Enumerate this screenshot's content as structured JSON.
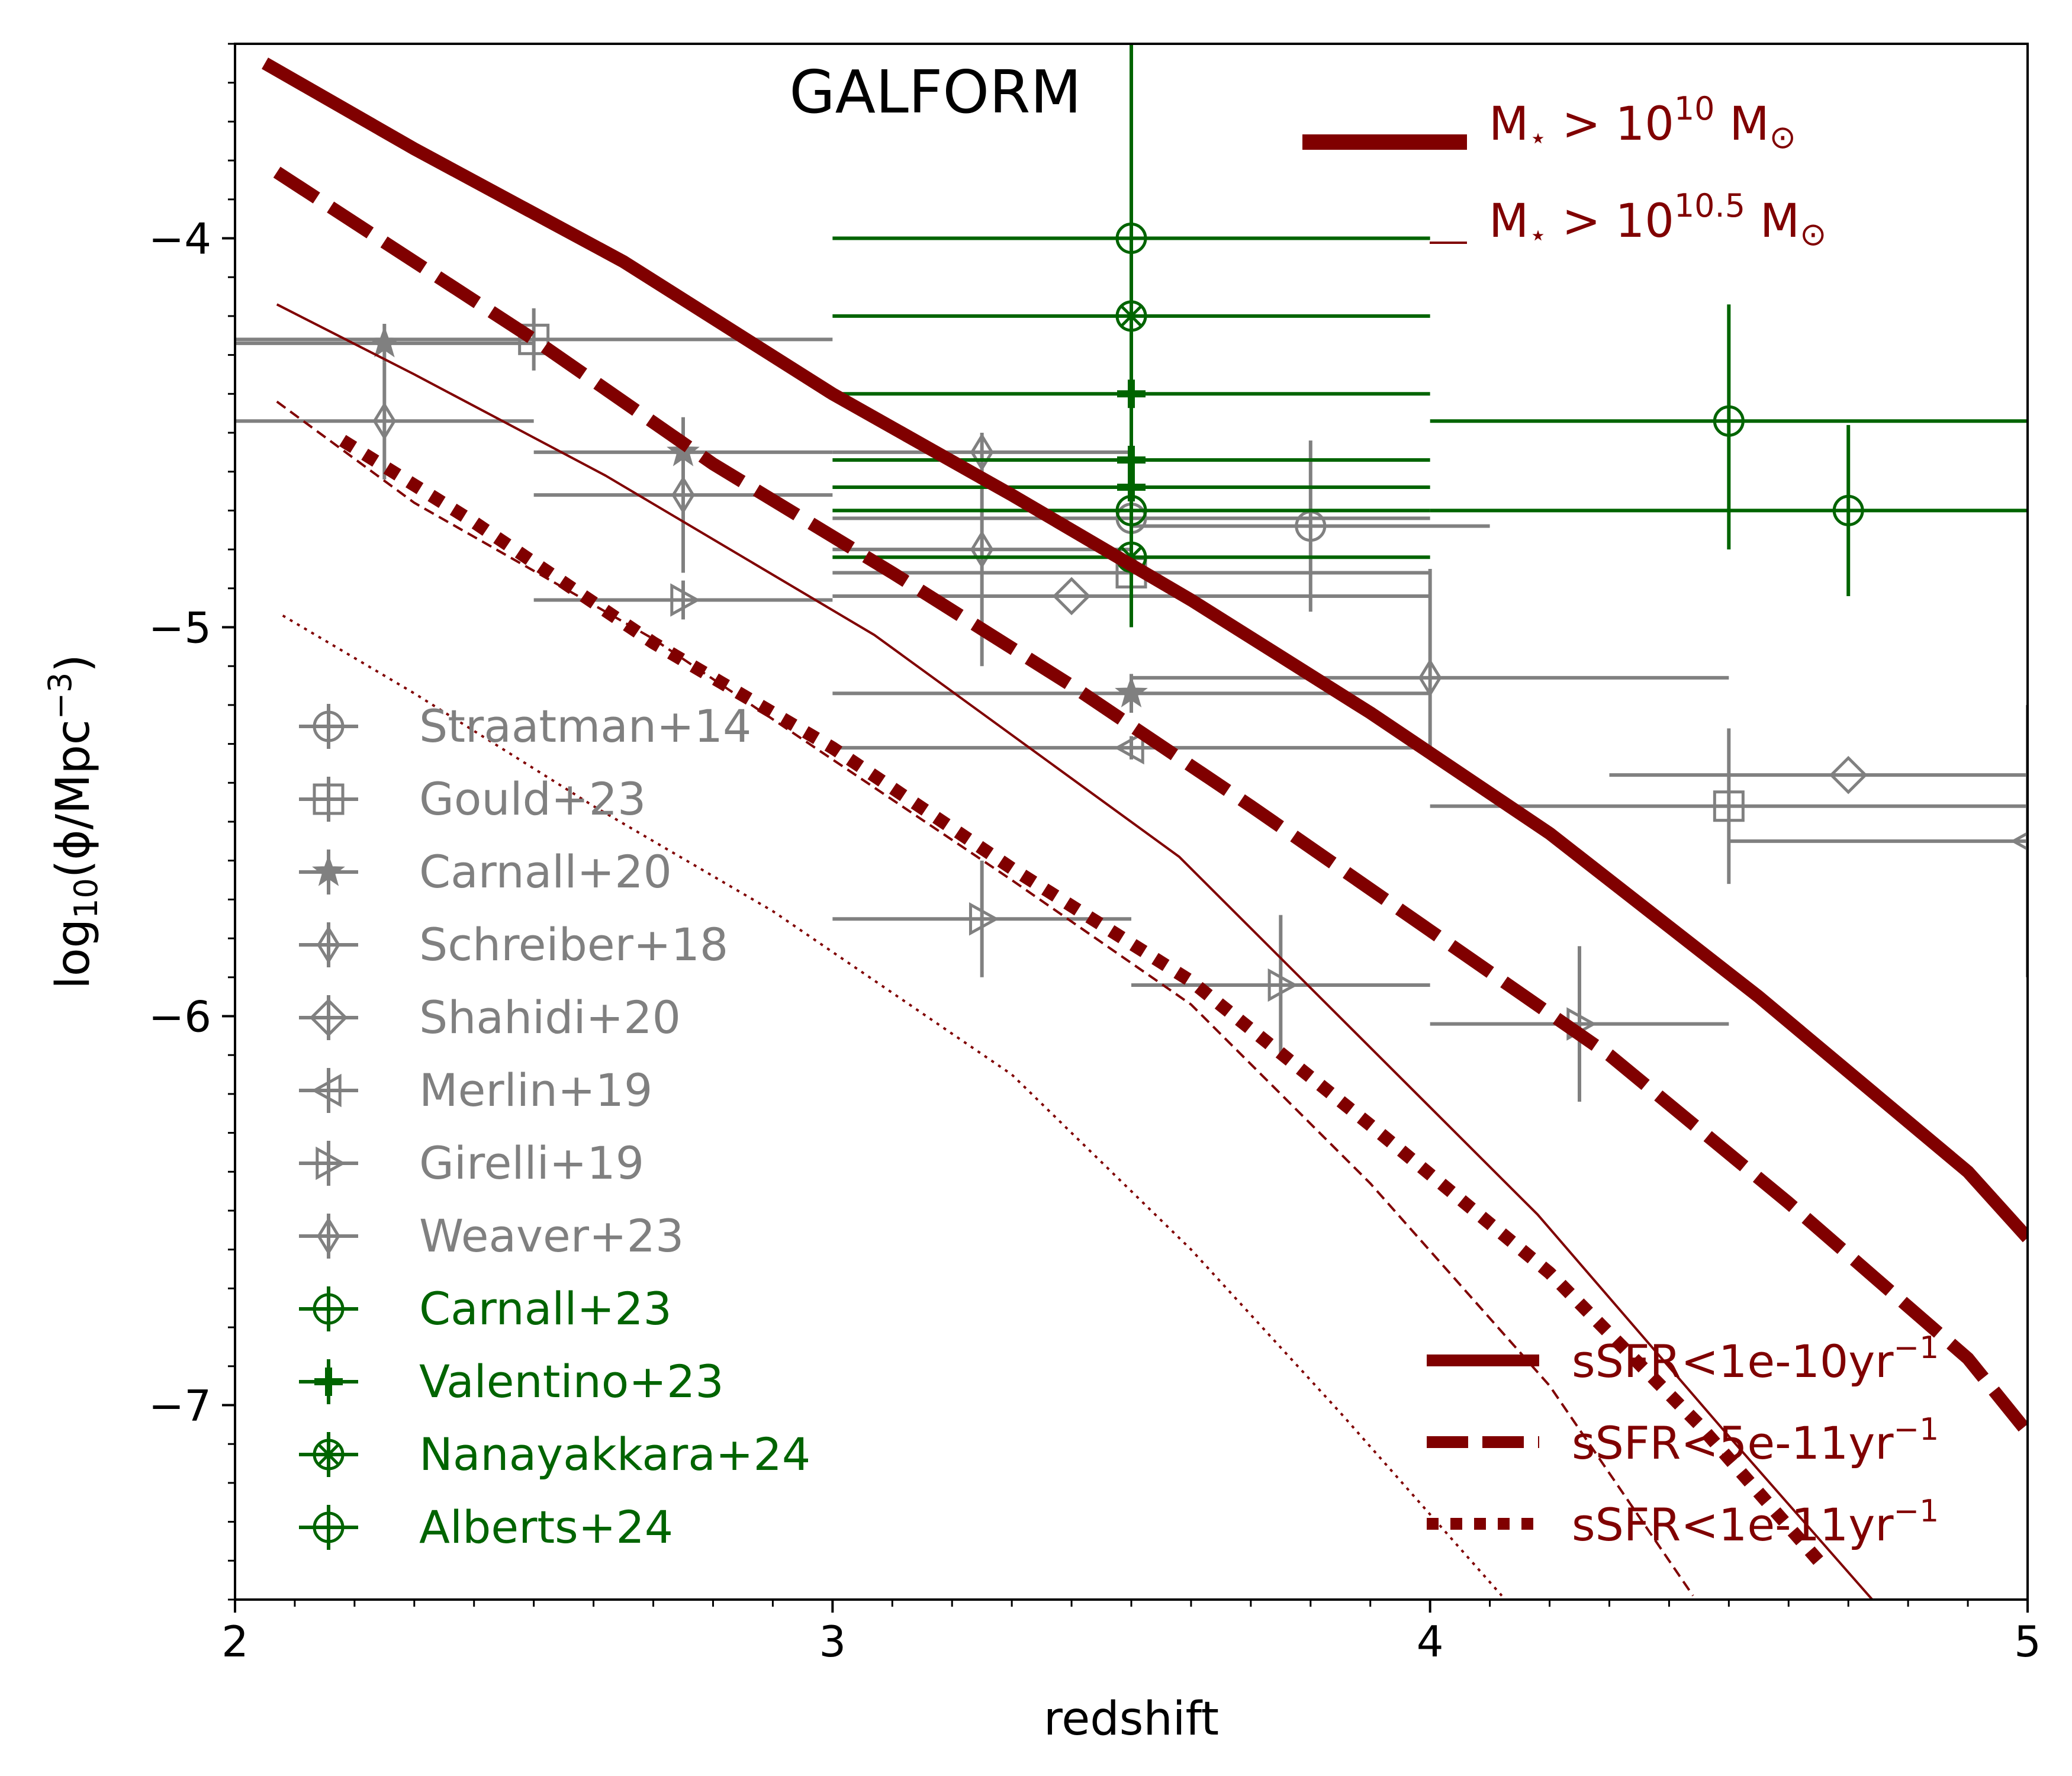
{
  "chart_data": {
    "type": "line",
    "title": "GALFORM",
    "xlabel": "redshift",
    "ylabel_parts": [
      "log",
      "10",
      "(ϕ/Mpc",
      "−3",
      ")"
    ],
    "xlim": [
      2,
      5
    ],
    "ylim": [
      -7.5,
      -3.5
    ],
    "xticks": [
      2,
      3,
      4,
      5
    ],
    "xtick_labels": [
      "2",
      "3",
      "4",
      "5"
    ],
    "yticks": [
      -4,
      -5,
      -6,
      -7
    ],
    "ytick_labels": [
      "−4",
      "−5",
      "−6",
      "−7"
    ],
    "mass_legend": [
      {
        "prefix": "M",
        "sub": "⋆",
        "mid": " > 10",
        "sup": "10",
        "suffix": " M",
        "suffix_sub": "⊙",
        "width": "thick"
      },
      {
        "prefix": "M",
        "sub": "⋆",
        "mid": " > 10",
        "sup": "10.5",
        "suffix": " M",
        "suffix_sub": "⊙",
        "width": "thin"
      }
    ],
    "ssfr_legend": [
      {
        "base": "sSFR<1e-10yr",
        "sup": "−1",
        "style": "solid"
      },
      {
        "base": "sSFR<5e-11yr",
        "sup": "−1",
        "style": "dashed"
      },
      {
        "base": "sSFR<1e-11yr",
        "sup": "−1",
        "style": "dotted"
      }
    ],
    "model_series": [
      {
        "mass": "1e10",
        "cut": "1e-10",
        "style": "solid",
        "width": "thick",
        "x": [
          2.05,
          2.3,
          2.65,
          3.0,
          3.3,
          3.6,
          3.9,
          4.2,
          4.55,
          4.9,
          5.0
        ],
        "y": [
          -3.55,
          -3.77,
          -4.06,
          -4.4,
          -4.66,
          -4.93,
          -5.22,
          -5.53,
          -5.95,
          -6.4,
          -6.57
        ]
      },
      {
        "mass": "1e10",
        "cut": "5e-11",
        "style": "dashed",
        "width": "thick",
        "x": [
          2.07,
          2.25,
          2.5,
          2.8,
          3.1,
          3.4,
          3.7,
          4.0,
          4.3,
          4.6,
          4.9,
          5.0
        ],
        "y": [
          -3.83,
          -4.01,
          -4.26,
          -4.58,
          -4.86,
          -5.15,
          -5.46,
          -5.78,
          -6.1,
          -6.48,
          -6.88,
          -7.07
        ]
      },
      {
        "mass": "1e10",
        "cut": "1e-11",
        "style": "dotted",
        "width": "thick",
        "x": [
          2.18,
          2.4,
          2.7,
          3.0,
          3.3,
          3.6,
          3.9,
          4.2,
          4.45,
          4.65
        ],
        "y": [
          -4.52,
          -4.73,
          -5.04,
          -5.31,
          -5.62,
          -5.91,
          -6.28,
          -6.66,
          -7.05,
          -7.4
        ]
      },
      {
        "mass": "3e10",
        "cut": "1e-10",
        "style": "solid",
        "width": "thin",
        "x": [
          2.07,
          2.3,
          2.62,
          3.07,
          3.58,
          4.18,
          4.5,
          4.74
        ],
        "y": [
          -4.17,
          -4.35,
          -4.61,
          -5.02,
          -5.59,
          -6.51,
          -7.08,
          -7.5
        ]
      },
      {
        "mass": "3e10",
        "cut": "5e-11",
        "style": "dashed",
        "width": "thin",
        "x": [
          2.07,
          2.3,
          2.7,
          3.0,
          3.3,
          3.6,
          3.9,
          4.2,
          4.44
        ],
        "y": [
          -4.42,
          -4.68,
          -5.03,
          -5.34,
          -5.65,
          -5.97,
          -6.43,
          -6.95,
          -7.49
        ]
      },
      {
        "mass": "3e10",
        "cut": "1e-11",
        "style": "dotted",
        "width": "thin",
        "x": [
          2.08,
          2.3,
          2.6,
          2.9,
          3.3,
          3.6,
          3.85,
          4.12
        ],
        "y": [
          -4.97,
          -5.17,
          -5.46,
          -5.73,
          -6.15,
          -6.6,
          -7.02,
          -7.49
        ]
      }
    ],
    "observations": [
      {
        "name": "Straatman+14",
        "group": "literature",
        "marker": "circle",
        "points": [
          {
            "x": 3.5,
            "y": -4.72,
            "xerr": [
              0.5,
              0.5
            ],
            "yerr": [
              0.12,
              0.12
            ]
          },
          {
            "x": 3.8,
            "y": -4.74,
            "xerr": [
              0.3,
              0.3
            ],
            "yerr": [
              0.22,
              0.22
            ]
          }
        ]
      },
      {
        "name": "Gould+23",
        "group": "literature",
        "marker": "square",
        "points": [
          {
            "x": 2.5,
            "y": -4.26,
            "xerr": [
              0.5,
              0.5
            ],
            "yerr": [
              0.08,
              0.08
            ]
          },
          {
            "x": 3.5,
            "y": -4.86,
            "xerr": [
              0.5,
              0.5
            ],
            "yerr": [
              0.1,
              0.1
            ]
          },
          {
            "x": 4.5,
            "y": -5.46,
            "xerr": [
              0.5,
              0.5
            ],
            "yerr": [
              0.2,
              0.2
            ]
          }
        ]
      },
      {
        "name": "Carnall+20",
        "group": "literature",
        "marker": "star",
        "points": [
          {
            "x": 2.25,
            "y": -4.27,
            "xerr": [
              0.25,
              0.25
            ],
            "yerr": [
              0.05,
              0.05
            ]
          },
          {
            "x": 2.75,
            "y": -4.55,
            "xerr": [
              0.25,
              0.25
            ],
            "yerr": [
              0.08,
              0.08
            ]
          },
          {
            "x": 3.5,
            "y": -5.17,
            "xerr": [
              0.5,
              0.5
            ],
            "yerr": [
              0.05,
              0.05
            ]
          }
        ]
      },
      {
        "name": "Schreiber+18",
        "group": "literature",
        "marker": "thin_diamond",
        "points": [
          {
            "x": 2.25,
            "y": -4.47,
            "xerr": [
              0.25,
              0.25
            ],
            "yerr": [
              0.15,
              0.15
            ]
          },
          {
            "x": 3.25,
            "y": -4.8,
            "xerr": [
              0.25,
              0.25
            ],
            "yerr": [
              0.3,
              0.3
            ]
          }
        ]
      },
      {
        "name": "Shahidi+20",
        "group": "literature",
        "marker": "diamond",
        "points": [
          {
            "x": 3.4,
            "y": -4.92,
            "xerr": [
              0.4,
              0.6
            ],
            "yerr": [
              0.0,
              0.0
            ]
          },
          {
            "x": 4.7,
            "y": -5.38,
            "xerr": [
              0.4,
              0.3
            ],
            "yerr": [
              0.0,
              0.0
            ]
          }
        ]
      },
      {
        "name": "Merlin+19",
        "group": "literature",
        "marker": "triangle_left",
        "points": [
          {
            "x": 3.5,
            "y": -5.31,
            "xerr": [
              0.5,
              0.5
            ],
            "yerr": [
              0.03,
              0.03
            ]
          },
          {
            "x": 5.0,
            "y": -5.55,
            "xerr": [
              0.5,
              0.5
            ],
            "yerr": [
              0.35,
              0.35
            ]
          }
        ]
      },
      {
        "name": "Girelli+19",
        "group": "literature",
        "marker": "triangle_right",
        "points": [
          {
            "x": 2.75,
            "y": -4.93,
            "xerr": [
              0.25,
              0.25
            ],
            "yerr": [
              0.05,
              0.05
            ]
          },
          {
            "x": 3.25,
            "y": -5.75,
            "xerr": [
              0.25,
              0.25
            ],
            "yerr": [
              0.15,
              0.15
            ]
          },
          {
            "x": 3.75,
            "y": -5.92,
            "xerr": [
              0.25,
              0.25
            ],
            "yerr": [
              0.18,
              0.18
            ]
          },
          {
            "x": 4.25,
            "y": -6.02,
            "xerr": [
              0.25,
              0.25
            ],
            "yerr": [
              0.2,
              0.2
            ]
          }
        ]
      },
      {
        "name": "Weaver+23",
        "group": "literature",
        "marker": "thin_diamond",
        "points": [
          {
            "x": 2.75,
            "y": -4.66,
            "xerr": [
              0.25,
              0.25
            ],
            "yerr": [
              0.2,
              0.2
            ]
          },
          {
            "x": 3.25,
            "y": -4.55,
            "xerr": [
              0.25,
              0.25
            ],
            "yerr": [
              0.0,
              0.0
            ]
          },
          {
            "x": 4.0,
            "y": -5.13,
            "xerr": [
              0.5,
              0.5
            ],
            "yerr": [
              0.18,
              0.28
            ]
          }
        ]
      },
      {
        "name": "Carnall+23",
        "group": "jwst",
        "marker": "circle",
        "points": [
          {
            "x": 3.5,
            "y": -4.0,
            "xerr": [
              0.5,
              0.5
            ],
            "yerr": [
              1.0,
              0.5
            ]
          },
          {
            "x": 4.5,
            "y": -4.47,
            "xerr": [
              0.5,
              0.5
            ],
            "yerr": [
              0.33,
              0.3
            ]
          }
        ]
      },
      {
        "name": "Valentino+23",
        "group": "jwst",
        "marker": "plus",
        "points": [
          {
            "x": 3.5,
            "y": -4.4,
            "xerr": [
              0.5,
              0.5
            ],
            "yerr": [
              0.05,
              0.05
            ]
          },
          {
            "x": 3.5,
            "y": -4.57,
            "xerr": [
              0.5,
              0.5
            ],
            "yerr": [
              0.05,
              0.05
            ]
          },
          {
            "x": 3.5,
            "y": -4.64,
            "xerr": [
              0.5,
              0.5
            ],
            "yerr": [
              0.05,
              0.05
            ]
          }
        ]
      },
      {
        "name": "Nanayakkara+24",
        "group": "jwst",
        "marker": "circle_cross",
        "points": [
          {
            "x": 3.5,
            "y": -4.2,
            "xerr": [
              0.5,
              0.5
            ],
            "yerr": [
              0.05,
              0.05
            ]
          },
          {
            "x": 3.5,
            "y": -4.82,
            "xerr": [
              0.5,
              0.5
            ],
            "yerr": [
              0.05,
              0.05
            ]
          }
        ]
      },
      {
        "name": "Alberts+24",
        "group": "jwst",
        "marker": "circle",
        "points": [
          {
            "x": 3.5,
            "y": -4.7,
            "xerr": [
              0.5,
              0.5
            ],
            "yerr": [
              0.05,
              0.05
            ]
          },
          {
            "x": 4.7,
            "y": -4.7,
            "xerr": [
              0.7,
              0.3
            ],
            "yerr": [
              0.22,
              0.22
            ]
          }
        ]
      }
    ],
    "colors": {
      "model": "#800000",
      "literature": "#808080",
      "jwst": "#006400",
      "axis": "#000000"
    },
    "grid": false,
    "legend_locations": {
      "observations": "lower-left",
      "mass": "upper-right",
      "ssfr": "lower-right"
    }
  }
}
